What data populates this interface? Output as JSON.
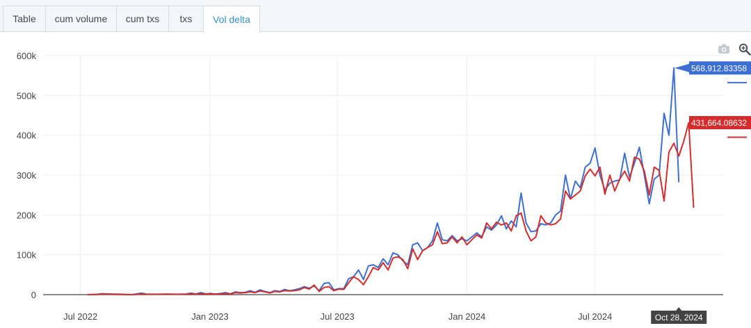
{
  "tabs": [
    {
      "label": "Table",
      "active": false
    },
    {
      "label": "cum volume",
      "active": false
    },
    {
      "label": "cum txs",
      "active": false
    },
    {
      "label": "txs",
      "active": false
    },
    {
      "label": "Vol delta",
      "active": true
    }
  ],
  "toolbar": {
    "icons": [
      "camera-icon",
      "zoom-icon"
    ]
  },
  "chart_data": {
    "type": "line",
    "title": "",
    "xlabel": "",
    "ylabel": "",
    "ylim": [
      0,
      600000
    ],
    "yticks": [
      {
        "value": 0,
        "label": "0"
      },
      {
        "value": 100000,
        "label": "100k"
      },
      {
        "value": 200000,
        "label": "200k"
      },
      {
        "value": 300000,
        "label": "300k"
      },
      {
        "value": 400000,
        "label": "400k"
      },
      {
        "value": 500000,
        "label": "500k"
      },
      {
        "value": 600000,
        "label": "600k"
      }
    ],
    "xlim": [
      "2022-05-09",
      "2024-12-30"
    ],
    "xticks": [
      {
        "date": "2022-07-01",
        "label": "Jul 2022"
      },
      {
        "date": "2023-01-01",
        "label": "Jan 2023"
      },
      {
        "date": "2023-07-01",
        "label": "Jul 2023"
      },
      {
        "date": "2024-01-01",
        "label": "Jan 2024"
      },
      {
        "date": "2024-07-01",
        "label": "Jul 2024"
      }
    ],
    "grid": true,
    "series": [
      {
        "color": "#3b6fd4",
        "points": [
          [
            "2022-07-11",
            0
          ],
          [
            "2022-07-25",
            1000
          ],
          [
            "2022-08-01",
            2500
          ],
          [
            "2022-08-15",
            1500
          ],
          [
            "2022-08-29",
            1000
          ],
          [
            "2022-09-12",
            0
          ],
          [
            "2022-09-26",
            4000
          ],
          [
            "2022-10-03",
            1000
          ],
          [
            "2022-10-17",
            1000
          ],
          [
            "2022-10-31",
            1500
          ],
          [
            "2022-11-14",
            1000
          ],
          [
            "2022-11-28",
            1500
          ],
          [
            "2022-12-05",
            4000
          ],
          [
            "2022-12-12",
            1500
          ],
          [
            "2022-12-19",
            5000
          ],
          [
            "2022-12-26",
            2000
          ],
          [
            "2023-01-02",
            3000
          ],
          [
            "2023-01-09",
            1500
          ],
          [
            "2023-01-16",
            3000
          ],
          [
            "2023-01-23",
            5000
          ],
          [
            "2023-01-30",
            2000
          ],
          [
            "2023-02-06",
            7000
          ],
          [
            "2023-02-13",
            5000
          ],
          [
            "2023-02-20",
            6000
          ],
          [
            "2023-02-27",
            10000
          ],
          [
            "2023-03-06",
            6000
          ],
          [
            "2023-03-13",
            12000
          ],
          [
            "2023-03-20",
            8000
          ],
          [
            "2023-03-27",
            5000
          ],
          [
            "2023-04-03",
            10000
          ],
          [
            "2023-04-10",
            8000
          ],
          [
            "2023-04-17",
            13000
          ],
          [
            "2023-04-24",
            10000
          ],
          [
            "2023-05-01",
            12000
          ],
          [
            "2023-05-08",
            15000
          ],
          [
            "2023-05-15",
            20000
          ],
          [
            "2023-05-22",
            16000
          ],
          [
            "2023-05-29",
            22000
          ],
          [
            "2023-06-05",
            10000
          ],
          [
            "2023-06-12",
            28000
          ],
          [
            "2023-06-19",
            30000
          ],
          [
            "2023-06-26",
            12000
          ],
          [
            "2023-07-03",
            15000
          ],
          [
            "2023-07-10",
            15000
          ],
          [
            "2023-07-17",
            40000
          ],
          [
            "2023-07-24",
            45000
          ],
          [
            "2023-07-31",
            62000
          ],
          [
            "2023-08-07",
            38000
          ],
          [
            "2023-08-14",
            72000
          ],
          [
            "2023-08-21",
            75000
          ],
          [
            "2023-08-28",
            68000
          ],
          [
            "2023-09-04",
            90000
          ],
          [
            "2023-09-11",
            75000
          ],
          [
            "2023-09-18",
            105000
          ],
          [
            "2023-09-25",
            100000
          ],
          [
            "2023-10-02",
            85000
          ],
          [
            "2023-10-09",
            75000
          ],
          [
            "2023-10-16",
            125000
          ],
          [
            "2023-10-23",
            130000
          ],
          [
            "2023-10-30",
            110000
          ],
          [
            "2023-11-06",
            118000
          ],
          [
            "2023-11-13",
            135000
          ],
          [
            "2023-11-20",
            180000
          ],
          [
            "2023-11-27",
            138000
          ],
          [
            "2023-12-04",
            135000
          ],
          [
            "2023-12-11",
            148000
          ],
          [
            "2023-12-18",
            135000
          ],
          [
            "2023-12-25",
            140000
          ],
          [
            "2024-01-01",
            135000
          ],
          [
            "2024-01-08",
            145000
          ],
          [
            "2024-01-15",
            155000
          ],
          [
            "2024-01-22",
            145000
          ],
          [
            "2024-01-29",
            170000
          ],
          [
            "2024-02-05",
            162000
          ],
          [
            "2024-02-12",
            175000
          ],
          [
            "2024-02-19",
            198000
          ],
          [
            "2024-02-26",
            165000
          ],
          [
            "2024-03-04",
            185000
          ],
          [
            "2024-03-11",
            170000
          ],
          [
            "2024-03-18",
            255000
          ],
          [
            "2024-03-25",
            180000
          ],
          [
            "2024-04-01",
            158000
          ],
          [
            "2024-04-08",
            160000
          ],
          [
            "2024-04-15",
            178000
          ],
          [
            "2024-04-22",
            175000
          ],
          [
            "2024-04-29",
            180000
          ],
          [
            "2024-05-06",
            200000
          ],
          [
            "2024-05-13",
            210000
          ],
          [
            "2024-05-20",
            300000
          ],
          [
            "2024-05-27",
            240000
          ],
          [
            "2024-06-03",
            285000
          ],
          [
            "2024-06-10",
            268000
          ],
          [
            "2024-06-17",
            320000
          ],
          [
            "2024-06-24",
            330000
          ],
          [
            "2024-07-01",
            368000
          ],
          [
            "2024-07-08",
            300000
          ],
          [
            "2024-07-15",
            262000
          ],
          [
            "2024-07-22",
            280000
          ],
          [
            "2024-07-29",
            285000
          ],
          [
            "2024-08-05",
            288000
          ],
          [
            "2024-08-12",
            355000
          ],
          [
            "2024-08-19",
            295000
          ],
          [
            "2024-08-26",
            330000
          ],
          [
            "2024-09-02",
            370000
          ],
          [
            "2024-09-09",
            300000
          ],
          [
            "2024-09-16",
            228000
          ],
          [
            "2024-09-23",
            290000
          ],
          [
            "2024-09-30",
            300000
          ],
          [
            "2024-10-07",
            455000
          ],
          [
            "2024-10-14",
            400000
          ],
          [
            "2024-10-21",
            568913
          ],
          [
            "2024-10-28",
            282000
          ]
        ],
        "hover_label": "568,912.83358"
      },
      {
        "color": "#d62c2c",
        "points": [
          [
            "2022-07-11",
            0
          ],
          [
            "2022-07-25",
            500
          ],
          [
            "2022-08-01",
            1500
          ],
          [
            "2022-08-15",
            800
          ],
          [
            "2022-08-29",
            500
          ],
          [
            "2022-09-12",
            0
          ],
          [
            "2022-09-26",
            1500
          ],
          [
            "2022-10-03",
            800
          ],
          [
            "2022-10-17",
            800
          ],
          [
            "2022-10-31",
            1000
          ],
          [
            "2022-11-14",
            800
          ],
          [
            "2022-11-28",
            1000
          ],
          [
            "2022-12-05",
            2500
          ],
          [
            "2022-12-12",
            1000
          ],
          [
            "2022-12-19",
            3000
          ],
          [
            "2022-12-26",
            1500
          ],
          [
            "2023-01-02",
            2000
          ],
          [
            "2023-01-09",
            1000
          ],
          [
            "2023-01-16",
            2000
          ],
          [
            "2023-01-23",
            3000
          ],
          [
            "2023-01-30",
            1500
          ],
          [
            "2023-02-06",
            5000
          ],
          [
            "2023-02-13",
            4000
          ],
          [
            "2023-02-20",
            5000
          ],
          [
            "2023-02-27",
            7000
          ],
          [
            "2023-03-06",
            5000
          ],
          [
            "2023-03-13",
            9000
          ],
          [
            "2023-03-20",
            7000
          ],
          [
            "2023-03-27",
            4000
          ],
          [
            "2023-04-03",
            8000
          ],
          [
            "2023-04-10",
            7000
          ],
          [
            "2023-04-17",
            10000
          ],
          [
            "2023-04-24",
            9000
          ],
          [
            "2023-05-01",
            10000
          ],
          [
            "2023-05-08",
            12000
          ],
          [
            "2023-05-15",
            18000
          ],
          [
            "2023-05-22",
            14000
          ],
          [
            "2023-05-29",
            24000
          ],
          [
            "2023-06-05",
            8000
          ],
          [
            "2023-06-12",
            18000
          ],
          [
            "2023-06-19",
            20000
          ],
          [
            "2023-06-26",
            10000
          ],
          [
            "2023-07-03",
            14000
          ],
          [
            "2023-07-10",
            13000
          ],
          [
            "2023-07-17",
            30000
          ],
          [
            "2023-07-24",
            45000
          ],
          [
            "2023-07-31",
            38000
          ],
          [
            "2023-08-07",
            25000
          ],
          [
            "2023-08-14",
            45000
          ],
          [
            "2023-08-21",
            68000
          ],
          [
            "2023-08-28",
            62000
          ],
          [
            "2023-09-04",
            80000
          ],
          [
            "2023-09-11",
            62000
          ],
          [
            "2023-09-18",
            92000
          ],
          [
            "2023-09-25",
            95000
          ],
          [
            "2023-10-02",
            88000
          ],
          [
            "2023-10-09",
            65000
          ],
          [
            "2023-10-16",
            115000
          ],
          [
            "2023-10-23",
            88000
          ],
          [
            "2023-10-30",
            110000
          ],
          [
            "2023-11-06",
            118000
          ],
          [
            "2023-11-13",
            125000
          ],
          [
            "2023-11-20",
            158000
          ],
          [
            "2023-11-27",
            128000
          ],
          [
            "2023-12-04",
            130000
          ],
          [
            "2023-12-11",
            145000
          ],
          [
            "2023-12-18",
            130000
          ],
          [
            "2023-12-25",
            145000
          ],
          [
            "2024-01-01",
            125000
          ],
          [
            "2024-01-08",
            138000
          ],
          [
            "2024-01-15",
            150000
          ],
          [
            "2024-01-22",
            142000
          ],
          [
            "2024-01-29",
            180000
          ],
          [
            "2024-02-05",
            165000
          ],
          [
            "2024-02-12",
            182000
          ],
          [
            "2024-02-19",
            175000
          ],
          [
            "2024-02-26",
            180000
          ],
          [
            "2024-03-04",
            160000
          ],
          [
            "2024-03-11",
            198000
          ],
          [
            "2024-03-18",
            205000
          ],
          [
            "2024-03-25",
            160000
          ],
          [
            "2024-04-01",
            135000
          ],
          [
            "2024-04-08",
            145000
          ],
          [
            "2024-04-15",
            198000
          ],
          [
            "2024-04-22",
            180000
          ],
          [
            "2024-04-29",
            175000
          ],
          [
            "2024-05-06",
            178000
          ],
          [
            "2024-05-13",
            190000
          ],
          [
            "2024-05-20",
            260000
          ],
          [
            "2024-05-27",
            240000
          ],
          [
            "2024-06-03",
            250000
          ],
          [
            "2024-06-10",
            260000
          ],
          [
            "2024-06-17",
            298000
          ],
          [
            "2024-06-24",
            315000
          ],
          [
            "2024-07-01",
            298000
          ],
          [
            "2024-07-08",
            320000
          ],
          [
            "2024-07-15",
            252000
          ],
          [
            "2024-07-22",
            300000
          ],
          [
            "2024-07-29",
            260000
          ],
          [
            "2024-08-05",
            290000
          ],
          [
            "2024-08-12",
            310000
          ],
          [
            "2024-08-19",
            285000
          ],
          [
            "2024-08-26",
            345000
          ],
          [
            "2024-09-02",
            340000
          ],
          [
            "2024-09-09",
            310000
          ],
          [
            "2024-09-16",
            250000
          ],
          [
            "2024-09-23",
            320000
          ],
          [
            "2024-09-30",
            312000
          ],
          [
            "2024-10-07",
            235000
          ],
          [
            "2024-10-14",
            358000
          ],
          [
            "2024-10-21",
            380000
          ],
          [
            "2024-10-28",
            348000
          ],
          [
            "2024-11-04",
            385000
          ],
          [
            "2024-11-11",
            431664
          ],
          [
            "2024-11-18",
            218000
          ]
        ],
        "hover_label": "431,664.08632"
      }
    ],
    "hover_x_label": "Oct 28, 2024"
  }
}
